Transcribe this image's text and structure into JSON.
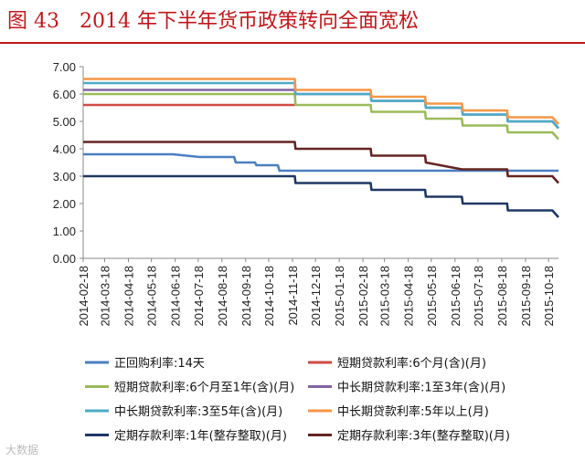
{
  "header": {
    "title": "图 43　2014 年下半年货币政策转向全面宽松"
  },
  "watermark": "大数据",
  "colors": {
    "title": "#c0181c",
    "正回购利率:14天": "#4a7fc1",
    "短期贷款利率:6个月(含)(月)": "#cf4b45",
    "短期贷款利率:6个月至1年(含)(月)": "#9bbb59",
    "中长期贷款利率:1至3年(含)(月)": "#8064a2",
    "中长期贷款利率:3至5年(含)(月)": "#4bacc6",
    "中长期贷款利率:5年以上(月)": "#f79646",
    "定期存款利率:1年(整存整取)(月)": "#1f3864",
    "定期存款利率:3年(整存整取)(月)": "#632523"
  },
  "chart_data": {
    "type": "line",
    "title": "2014 年下半年货币政策转向全面宽松",
    "xlabel": "",
    "ylabel": "",
    "ylim": [
      0,
      7
    ],
    "yticks": [
      "0.00",
      "1.00",
      "2.00",
      "3.00",
      "4.00",
      "5.00",
      "6.00",
      "7.00"
    ],
    "x_ticks": [
      "2014-02-18",
      "2014-03-18",
      "2014-04-18",
      "2014-05-18",
      "2014-06-18",
      "2014-07-18",
      "2014-08-18",
      "2014-09-18",
      "2014-10-18",
      "2014-11-18",
      "2014-12-18",
      "2015-01-18",
      "2015-02-18",
      "2015-03-18",
      "2015-04-18",
      "2015-05-18",
      "2015-06-18",
      "2015-07-18",
      "2015-08-18",
      "2015-09-18",
      "2015-10-18"
    ],
    "x_range": [
      "2014-02-18",
      "2015-10-31"
    ],
    "grid": false,
    "legend_position": "bottom",
    "series": [
      {
        "name": "正回购利率:14天",
        "points": [
          [
            "2014-02-18",
            3.8
          ],
          [
            "2014-06-15",
            3.8
          ],
          [
            "2014-07-20",
            3.7
          ],
          [
            "2014-09-03",
            3.7
          ],
          [
            "2014-09-05",
            3.5
          ],
          [
            "2014-09-30",
            3.5
          ],
          [
            "2014-10-02",
            3.4
          ],
          [
            "2014-10-30",
            3.4
          ],
          [
            "2014-11-01",
            3.2
          ],
          [
            "2015-10-31",
            3.2
          ]
        ]
      },
      {
        "name": "短期贷款利率:6个月(含)(月)",
        "points": [
          [
            "2014-02-18",
            5.6
          ],
          [
            "2014-11-21",
            5.6
          ]
        ]
      },
      {
        "name": "短期贷款利率:6个月至1年(含)(月)",
        "points": [
          [
            "2014-02-18",
            6.0
          ],
          [
            "2014-11-21",
            6.0
          ],
          [
            "2014-11-22",
            5.6
          ],
          [
            "2015-02-28",
            5.6
          ],
          [
            "2015-03-01",
            5.35
          ],
          [
            "2015-05-10",
            5.35
          ],
          [
            "2015-05-11",
            5.1
          ],
          [
            "2015-06-27",
            5.1
          ],
          [
            "2015-06-28",
            4.85
          ],
          [
            "2015-08-25",
            4.85
          ],
          [
            "2015-08-26",
            4.6
          ],
          [
            "2015-10-23",
            4.6
          ],
          [
            "2015-10-31",
            4.35
          ]
        ]
      },
      {
        "name": "中长期贷款利率:1至3年(含)(月)",
        "points": [
          [
            "2014-02-18",
            6.15
          ],
          [
            "2014-11-21",
            6.15
          ],
          [
            "2014-11-22",
            6.0
          ],
          [
            "2015-02-28",
            6.0
          ],
          [
            "2015-03-01",
            5.75
          ],
          [
            "2015-05-10",
            5.75
          ],
          [
            "2015-05-11",
            5.5
          ],
          [
            "2015-06-27",
            5.5
          ],
          [
            "2015-06-28",
            5.25
          ],
          [
            "2015-08-25",
            5.25
          ],
          [
            "2015-08-26",
            5.0
          ],
          [
            "2015-10-23",
            5.0
          ],
          [
            "2015-10-31",
            4.75
          ]
        ]
      },
      {
        "name": "中长期贷款利率:3至5年(含)(月)",
        "points": [
          [
            "2014-02-18",
            6.4
          ],
          [
            "2014-11-21",
            6.4
          ],
          [
            "2014-11-22",
            6.0
          ],
          [
            "2015-02-28",
            6.0
          ],
          [
            "2015-03-01",
            5.75
          ],
          [
            "2015-05-10",
            5.75
          ],
          [
            "2015-05-11",
            5.5
          ],
          [
            "2015-06-27",
            5.5
          ],
          [
            "2015-06-28",
            5.25
          ],
          [
            "2015-08-25",
            5.25
          ],
          [
            "2015-08-26",
            5.0
          ],
          [
            "2015-10-23",
            5.0
          ],
          [
            "2015-10-31",
            4.75
          ]
        ]
      },
      {
        "name": "中长期贷款利率:5年以上(月)",
        "points": [
          [
            "2014-02-18",
            6.55
          ],
          [
            "2014-11-21",
            6.55
          ],
          [
            "2014-11-22",
            6.15
          ],
          [
            "2015-02-28",
            6.15
          ],
          [
            "2015-03-01",
            5.9
          ],
          [
            "2015-05-10",
            5.9
          ],
          [
            "2015-05-11",
            5.65
          ],
          [
            "2015-06-27",
            5.65
          ],
          [
            "2015-06-28",
            5.4
          ],
          [
            "2015-08-25",
            5.4
          ],
          [
            "2015-08-26",
            5.15
          ],
          [
            "2015-10-23",
            5.15
          ],
          [
            "2015-10-31",
            4.9
          ]
        ]
      },
      {
        "name": "定期存款利率:1年(整存整取)(月)",
        "points": [
          [
            "2014-02-18",
            3.0
          ],
          [
            "2014-11-21",
            3.0
          ],
          [
            "2014-11-22",
            2.75
          ],
          [
            "2015-02-28",
            2.75
          ],
          [
            "2015-03-01",
            2.5
          ],
          [
            "2015-05-10",
            2.5
          ],
          [
            "2015-05-11",
            2.25
          ],
          [
            "2015-06-27",
            2.25
          ],
          [
            "2015-06-28",
            2.0
          ],
          [
            "2015-08-25",
            2.0
          ],
          [
            "2015-08-26",
            1.75
          ],
          [
            "2015-10-23",
            1.75
          ],
          [
            "2015-10-31",
            1.5
          ]
        ]
      },
      {
        "name": "定期存款利率:3年(整存整取)(月)",
        "points": [
          [
            "2014-02-18",
            4.25
          ],
          [
            "2014-11-21",
            4.25
          ],
          [
            "2014-11-22",
            4.0
          ],
          [
            "2015-02-28",
            4.0
          ],
          [
            "2015-03-01",
            3.75
          ],
          [
            "2015-05-10",
            3.75
          ],
          [
            "2015-05-11",
            3.5
          ],
          [
            "2015-06-27",
            3.25
          ],
          [
            "2015-08-25",
            3.25
          ],
          [
            "2015-08-26",
            3.0
          ],
          [
            "2015-10-23",
            3.0
          ],
          [
            "2015-10-31",
            2.75
          ]
        ]
      }
    ]
  }
}
